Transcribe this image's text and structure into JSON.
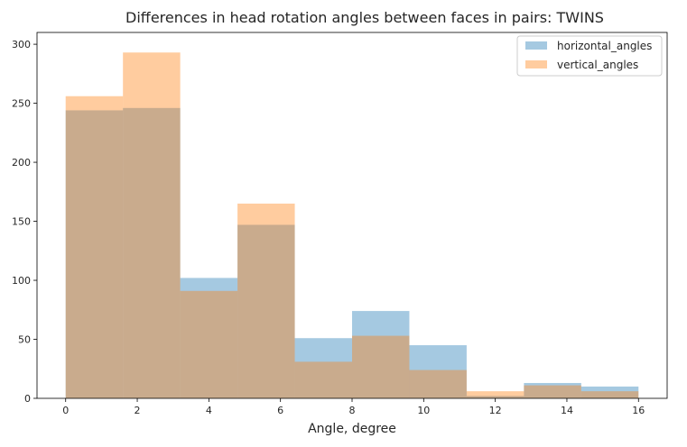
{
  "chart_data": {
    "type": "histogram",
    "title": "Differences in head rotation angles between faces in pairs: TWINS",
    "xlabel": "Angle, degree",
    "ylabel": "",
    "xlim": [
      -0.8,
      16.8
    ],
    "ylim": [
      0,
      310
    ],
    "xticks": [
      0,
      2,
      4,
      6,
      8,
      10,
      12,
      14,
      16
    ],
    "yticks": [
      0,
      50,
      100,
      150,
      200,
      250,
      300
    ],
    "bin_edges": [
      0,
      1.6,
      3.2,
      4.8,
      6.4,
      8.0,
      9.6,
      11.2,
      12.8,
      14.4,
      16.0
    ],
    "legend_position": "top-right",
    "grid": false,
    "series": [
      {
        "name": "horizontal_angles",
        "color": "#1f77b4",
        "values": [
          244,
          246,
          102,
          147,
          51,
          74,
          45,
          2,
          13,
          10
        ]
      },
      {
        "name": "vertical_angles",
        "color": "#ff7f0e",
        "values": [
          256,
          293,
          91,
          165,
          31,
          53,
          24,
          6,
          11,
          6
        ]
      }
    ]
  }
}
